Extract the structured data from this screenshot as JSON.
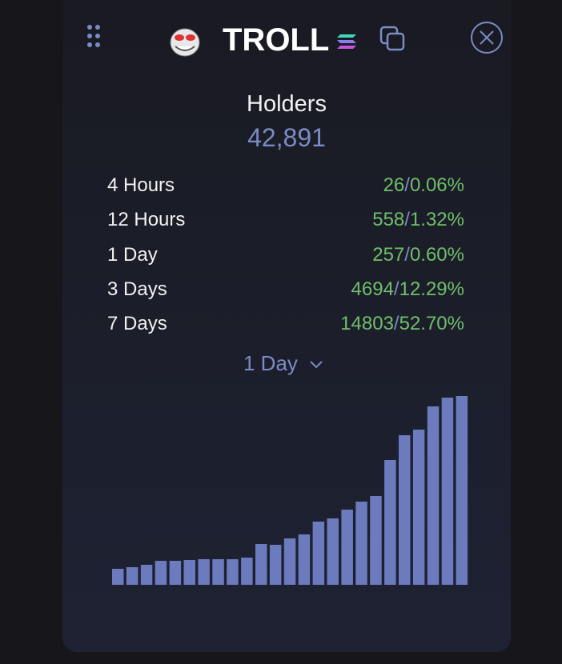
{
  "header": {
    "token": "TROLL"
  },
  "holders": {
    "label": "Holders",
    "value": "42,891"
  },
  "changes": [
    {
      "period": "4 Hours",
      "count": "26",
      "separator": "/",
      "percent": "0.06%"
    },
    {
      "period": "12 Hours",
      "count": "558",
      "separator": "/",
      "percent": "1.32%"
    },
    {
      "period": "1 Day",
      "count": "257",
      "separator": "/",
      "percent": "0.60%"
    },
    {
      "period": "3 Days",
      "count": "4694",
      "separator": "/",
      "percent": "12.29%"
    },
    {
      "period": "7 Days",
      "count": "14803",
      "separator": "/",
      "percent": "52.70%"
    }
  ],
  "range_selector": {
    "selected": "1 Day"
  },
  "chart_data": {
    "type": "bar",
    "color": "#6b7bbd",
    "values": [
      20,
      22,
      25,
      30,
      30,
      31,
      32,
      32,
      32,
      34,
      51,
      50,
      58,
      63,
      79,
      83,
      94,
      104,
      111,
      156,
      187,
      194,
      223,
      234,
      236
    ]
  }
}
